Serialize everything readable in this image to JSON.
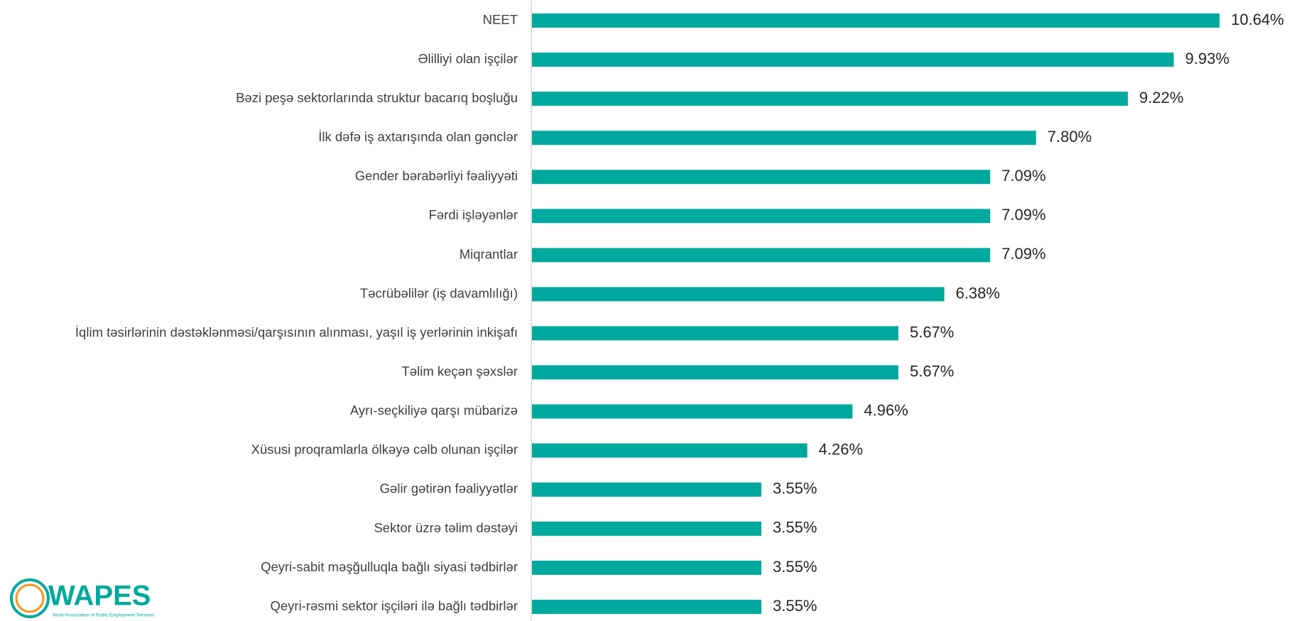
{
  "chart_data": {
    "type": "barh",
    "categories": [
      "NEET",
      "Əlilliyi olan işçilər",
      "Bəzi peşə sektorlarında struktur bacarıq boşluğu",
      "İlk dəfə iş axtarışında olan gənclər",
      "Gender bərabərliyi fəaliyyəti",
      "Fərdi işləyənlər",
      "Miqrantlar",
      "Təcrübəlilər (iş davamlılığı)",
      "İqlim təsirlərinin dəstəklənməsi/qarşısının alınması, yaşıl iş yerlərinin inkişafı",
      "Təlim keçən şəxslər",
      "Ayrı-seçkiliyə qarşı mübarizə",
      "Xüsusi proqramlarla ölkəyə cəlb olunan işçilər",
      "Gəlir gətirən fəaliyyətlər",
      "Sektor üzrə təlim dəstəyi",
      "Qeyri-sabit məşğulluqla bağlı siyasi tədbirlər",
      "Qeyri-rəsmi sektor işçiləri ilə bağlı tədbirlər"
    ],
    "values": [
      10.64,
      9.93,
      9.22,
      7.8,
      7.09,
      7.09,
      7.09,
      6.38,
      5.67,
      5.67,
      4.96,
      4.26,
      3.55,
      3.55,
      3.55,
      3.55
    ],
    "value_labels": [
      "10.64%",
      "9.93%",
      "9.22%",
      "7.80%",
      "7.09%",
      "7.09%",
      "7.09%",
      "6.38%",
      "5.67%",
      "5.67%",
      "4.96%",
      "4.26%",
      "3.55%",
      "3.55%",
      "3.55%",
      "3.55%"
    ],
    "color": "#00a99d"
  },
  "logo": {
    "name": "WAPES",
    "subtitle": "World Association of Public Employment Services"
  }
}
